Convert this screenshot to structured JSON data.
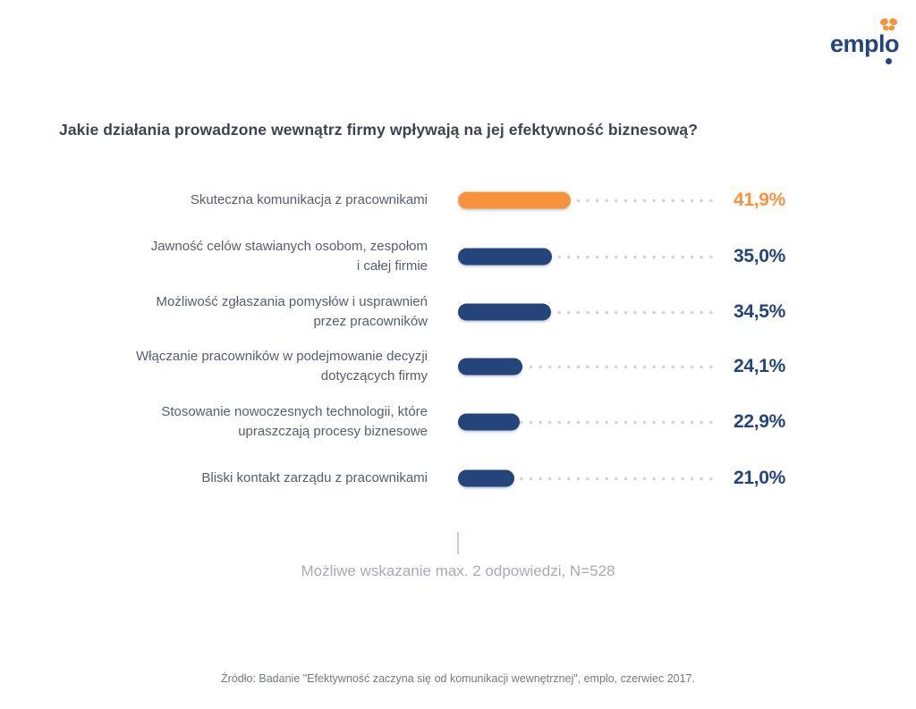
{
  "logo": {
    "wordmark": "emplo",
    "colors": {
      "brand_navy": "#24457C",
      "accent_orange": "#F9923C"
    }
  },
  "chart_data": {
    "type": "bar",
    "orientation": "horizontal",
    "title": "Jakie działania prowadzone wewnątrz firmy wpływają na jej efektywność biznesową?",
    "xlabel": "",
    "ylabel": "",
    "xlim": [
      0,
      96
    ],
    "grid": "dotted leader lines from bar end to value label",
    "legend": "none",
    "categories": [
      "Skuteczna komunikacja z pracownikami",
      "Jawność celów stawianych osobom, zespołom i całej firmie",
      "Możliwość zgłaszania pomysłów i usprawnień przez pracowników",
      "Włączanie pracowników w podejmowanie decyzji dotyczących firmy",
      "Stosowanie nowoczesnych technologii, które upraszczają procesy biznesowe",
      "Bliski kontakt zarządu z pracownikami"
    ],
    "values": [
      41.9,
      35.0,
      34.5,
      24.1,
      22.9,
      21.0
    ],
    "rows": [
      {
        "label": "Skuteczna komunikacja z pracownikami",
        "value": 41.9,
        "value_label": "41,9%",
        "color": "#F9923C"
      },
      {
        "label": "Jawność celów stawianych osobom, zespołom\ni całej firmie",
        "value": 35.0,
        "value_label": "35,0%",
        "color": "#24457C"
      },
      {
        "label": "Możliwość zgłaszania pomysłów i usprawnień\nprzez pracowników",
        "value": 34.5,
        "value_label": "34,5%",
        "color": "#24457C"
      },
      {
        "label": "Włączanie pracowników w podejmowanie decyzji\ndotyczących firmy",
        "value": 24.1,
        "value_label": "24,1%",
        "color": "#24457C"
      },
      {
        "label": "Stosowanie nowoczesnych technologii, które\nupraszczają procesy biznesowe",
        "value": 22.9,
        "value_label": "22,9%",
        "color": "#24457C"
      },
      {
        "label": "Bliski kontakt zarządu z pracownikami",
        "value": 21.0,
        "value_label": "21,0%",
        "color": "#24457C"
      }
    ],
    "note": "Możliwe wskazanie max. 2 odpowiedzi, N=528",
    "source": "Źródło: Badanie \"Efektywność zaczyna się od komunikacji wewnętrznej\", emplo, czerwiec 2017."
  }
}
